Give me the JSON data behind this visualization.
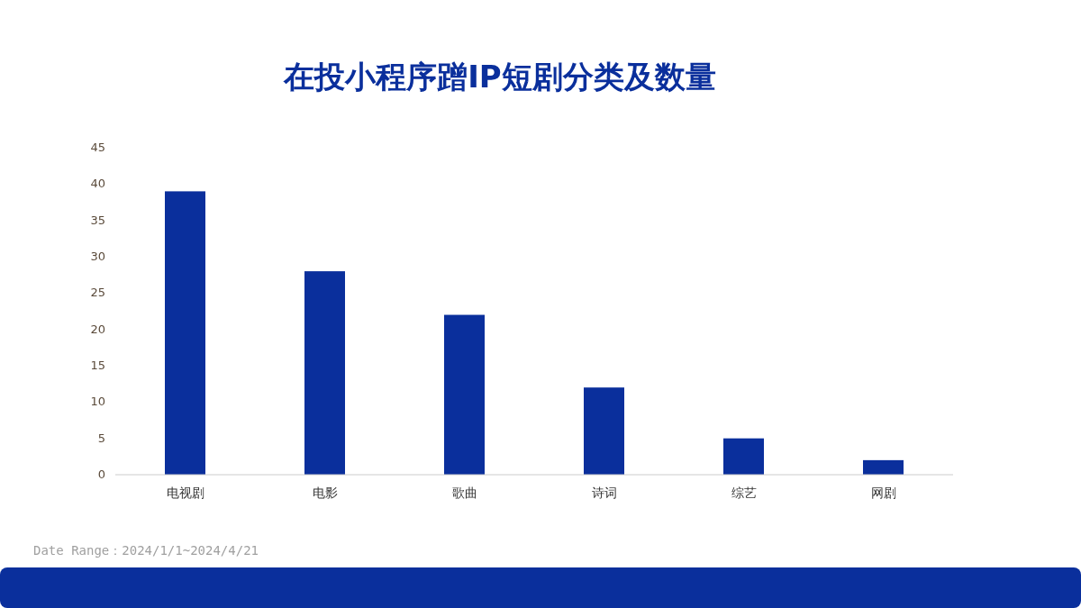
{
  "chart_data": {
    "type": "bar",
    "title": "在投小程序蹭IP短剧分类及数量",
    "categories": [
      "电视剧",
      "电影",
      "歌曲",
      "诗词",
      "综艺",
      "网剧"
    ],
    "values": [
      39,
      28,
      22,
      12,
      5,
      2
    ],
    "color": "#0a2f9c",
    "ylim": [
      0,
      45
    ],
    "yticks": [
      0,
      5,
      10,
      15,
      20,
      25,
      30,
      35,
      40,
      45
    ],
    "annotations": [
      "Date Range：2024/1/1~2024/4/21"
    ]
  }
}
